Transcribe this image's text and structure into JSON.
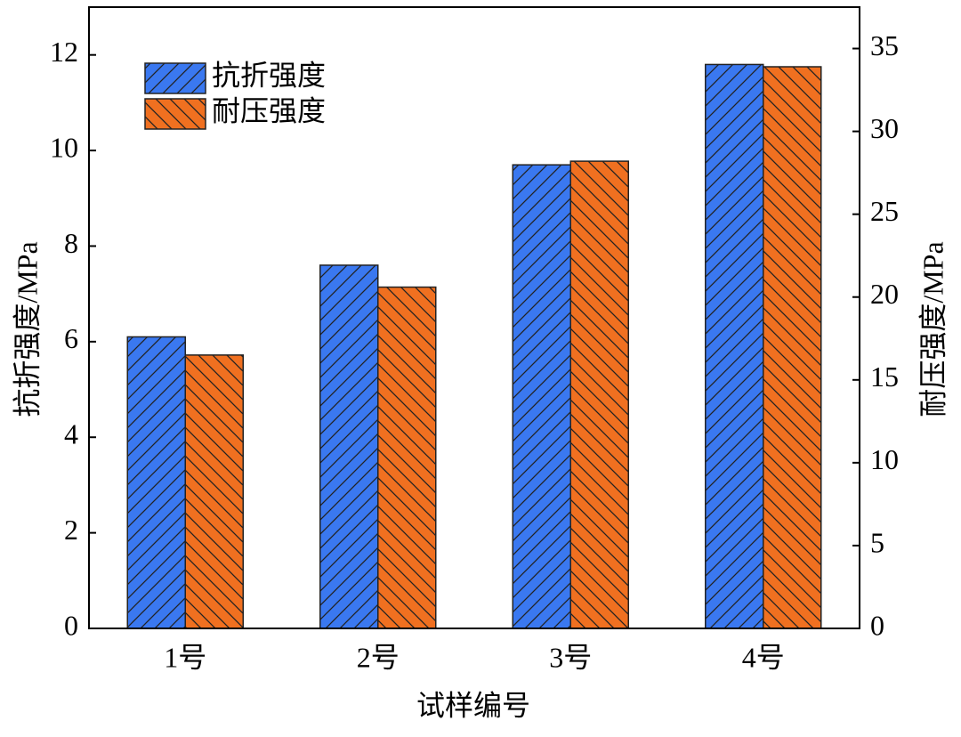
{
  "chart_data": {
    "type": "bar",
    "x_label": "试样编号",
    "y_label": "抗折强度/MPa",
    "y2_label": "耐压强度/MPa",
    "categories": [
      "1号",
      "2号",
      "3号",
      "4号"
    ],
    "series": [
      {
        "name": "抗折强度",
        "color": "#3a78f0",
        "values": [
          6.1,
          7.6,
          9.7,
          11.8
        ],
        "hatch": "/"
      },
      {
        "name": "耐压强度",
        "color": "#f07020",
        "values": [
          16.5,
          20.6,
          28.2,
          33.9
        ],
        "axis": "y2",
        "hatch": "\\"
      }
    ],
    "ylim": [
      0,
      13
    ],
    "yticks": [
      0,
      2,
      4,
      6,
      8,
      10,
      12
    ],
    "y2lim": [
      0,
      37.5
    ],
    "y2ticks": [
      0,
      5,
      10,
      15,
      20,
      25,
      30,
      35
    ],
    "legend": "upper left"
  }
}
